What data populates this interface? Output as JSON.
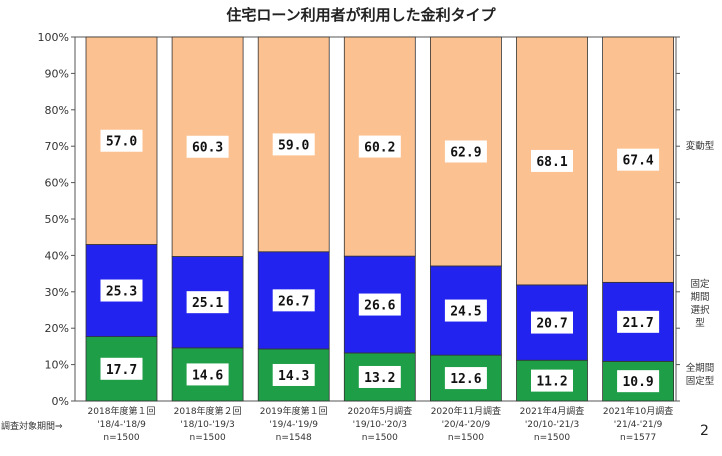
{
  "chart_data": {
    "type": "bar",
    "stacked": true,
    "title": "住宅ローン利用者が利用した金利タイプ",
    "categories": [
      "2018年度第１回",
      "2018年度第２回",
      "2019年度第１回",
      "2020年5月調査",
      "2020年11月調査",
      "2021年4月調査",
      "2021年10月調査"
    ],
    "periods": [
      "'18/4-'18/9",
      "'18/10-'19/3",
      "'19/4-'19/9",
      "'19/10-'20/3",
      "'20/4-'20/9",
      "'20/10-'21/3",
      "'21/4-'21/9"
    ],
    "n": [
      "n=1500",
      "n=1500",
      "n=1548",
      "n=1500",
      "n=1500",
      "n=1500",
      "n=1577"
    ],
    "period_prefix": "調査対象期間⇒",
    "ylim": [
      0,
      100
    ],
    "yticks": [
      "0%",
      "10%",
      "20%",
      "30%",
      "40%",
      "50%",
      "60%",
      "70%",
      "80%",
      "90%",
      "100%"
    ],
    "series": [
      {
        "name": "全期間固定型",
        "lines": [
          "全期間",
          "固定型"
        ],
        "color": "#1f9e48",
        "values": [
          17.7,
          14.6,
          14.3,
          13.2,
          12.6,
          11.2,
          10.9
        ]
      },
      {
        "name": "固定期間選択型",
        "lines": [
          "固定",
          "期間",
          "選択",
          "型"
        ],
        "color": "#2323f0",
        "values": [
          25.3,
          25.1,
          26.7,
          26.6,
          24.5,
          20.7,
          21.7
        ]
      },
      {
        "name": "変動型",
        "lines": [
          "変動型"
        ],
        "color": "#fcc190",
        "values": [
          57.0,
          60.3,
          59.0,
          60.2,
          62.9,
          68.1,
          67.4
        ]
      }
    ],
    "legend": "right"
  },
  "page_number": "2"
}
